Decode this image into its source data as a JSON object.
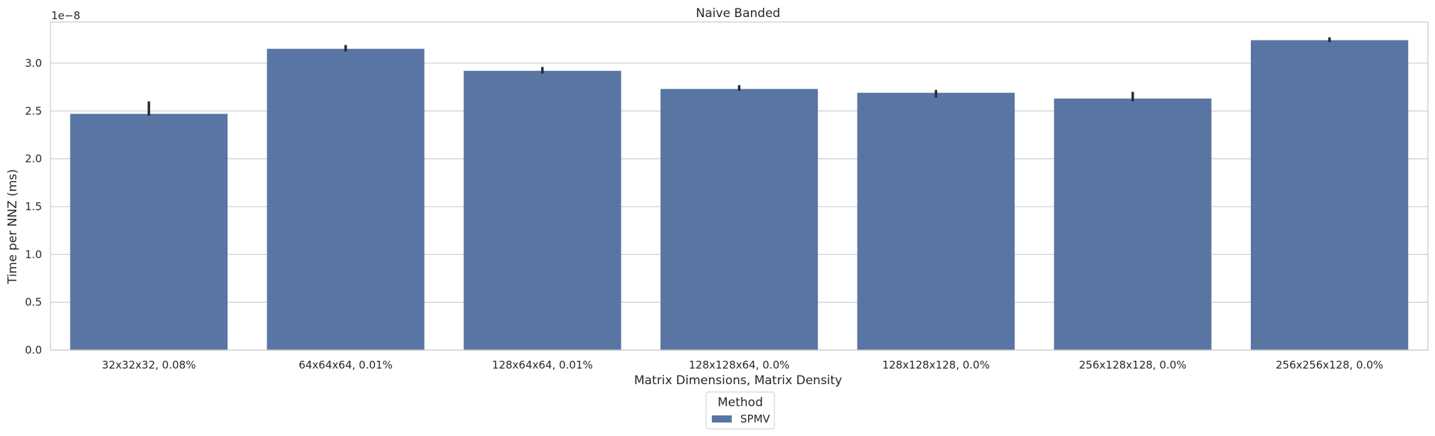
{
  "chart_data": {
    "type": "bar",
    "title": "Naive Banded",
    "xlabel": "Matrix Dimensions, Matrix Density",
    "ylabel": "Time per NNZ (ms)",
    "y_scale_label": "1e−8",
    "categories": [
      "32x32x32, 0.08%",
      "64x64x64, 0.01%",
      "128x64x64, 0.01%",
      "128x128x64, 0.0%",
      "128x128x128, 0.0%",
      "256x128x128, 0.0%",
      "256x256x128, 0.0%"
    ],
    "series": [
      {
        "name": "SPMV",
        "values": [
          2.47,
          3.15,
          2.92,
          2.73,
          2.69,
          2.63,
          3.24
        ],
        "error_low": [
          2.45,
          3.12,
          2.89,
          2.71,
          2.64,
          2.6,
          3.22
        ],
        "error_high": [
          2.6,
          3.19,
          2.96,
          2.77,
          2.72,
          2.7,
          3.27
        ]
      }
    ],
    "ylim": [
      0,
      3.43
    ],
    "yticks": [
      "0.0",
      "0.5",
      "1.0",
      "1.5",
      "2.0",
      "2.5",
      "3.0"
    ],
    "ytick_values": [
      0,
      0.5,
      1.0,
      1.5,
      2.0,
      2.5,
      3.0
    ],
    "grid": true,
    "legend": {
      "title": "Method",
      "placement": "bottom-center"
    },
    "colors": {
      "bar": "#5975a4",
      "error": "#2b2b2b",
      "grid": "#cccccc",
      "spine": "#cccccc"
    }
  }
}
